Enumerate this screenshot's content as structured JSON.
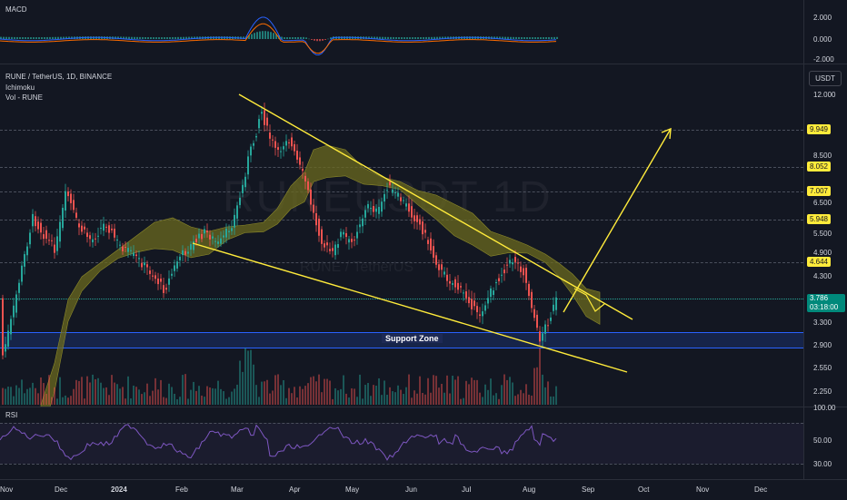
{
  "macd": {
    "title": "MACD",
    "ticks": [
      "2.000",
      "0.000",
      "-2.000"
    ]
  },
  "main": {
    "symbol": "RUNE / TetherUS, 1D, BINANCE",
    "indicators": [
      "Ichimoku",
      "Vol - RUNE"
    ],
    "currency": "USDT",
    "watermark": "RUNEUSDT 1D",
    "watermark_sub": "RUNE / TetherUS",
    "price_ticks": [
      "12.000",
      "8.500",
      "6.500",
      "5.500",
      "4.900",
      "4.300",
      "3.300",
      "2.900",
      "2.550",
      "2.250"
    ],
    "levels": [
      "9.949",
      "8.052",
      "7.007",
      "5.948",
      "4.644"
    ],
    "current_price": "3.786",
    "countdown": "03:18:00",
    "support_zone_label": "Support Zone",
    "colors": {
      "up": "#26a69a",
      "down": "#ef5350",
      "trend": "#ffeb3b",
      "cloud": "#6b6a1f",
      "zone": "#2962ff"
    }
  },
  "rsi": {
    "title": "RSI",
    "ticks": [
      "100.00",
      "50.00",
      "30.00"
    ]
  },
  "xaxis": {
    "labels": [
      "Nov",
      "Dec",
      "2024",
      "Feb",
      "Mar",
      "Apr",
      "May",
      "Jun",
      "Jul",
      "Aug",
      "Sep",
      "Oct",
      "Nov",
      "Dec"
    ]
  }
}
